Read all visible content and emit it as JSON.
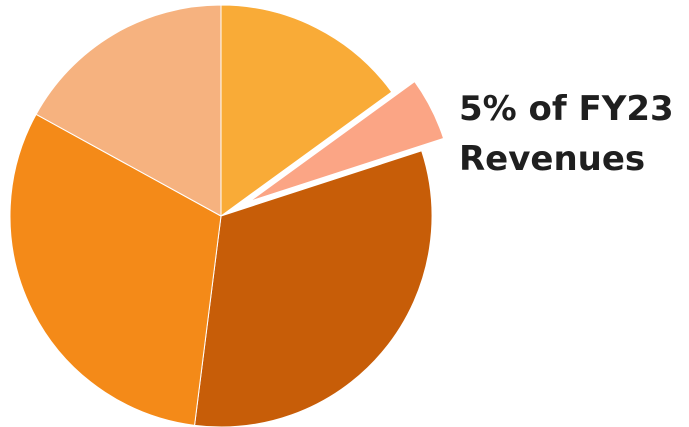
{
  "chart_data": {
    "type": "pie",
    "title": "",
    "slices": [
      {
        "value": 15,
        "color": "#F9AB37",
        "exploded": false
      },
      {
        "value": 5,
        "color": "#FBA585",
        "exploded": true,
        "annotation_ref": "callout"
      },
      {
        "value": 32,
        "color": "#C75D08",
        "exploded": false
      },
      {
        "value": 31,
        "color": "#F48A18",
        "exploded": false
      },
      {
        "value": 17,
        "color": "#F6B27F",
        "exploded": false
      }
    ],
    "start": "12 o'clock",
    "direction": "clockwise",
    "legend": "none",
    "annotations": {
      "callout": {
        "line1": "5% of FY23",
        "line2": "Revenues"
      }
    }
  }
}
